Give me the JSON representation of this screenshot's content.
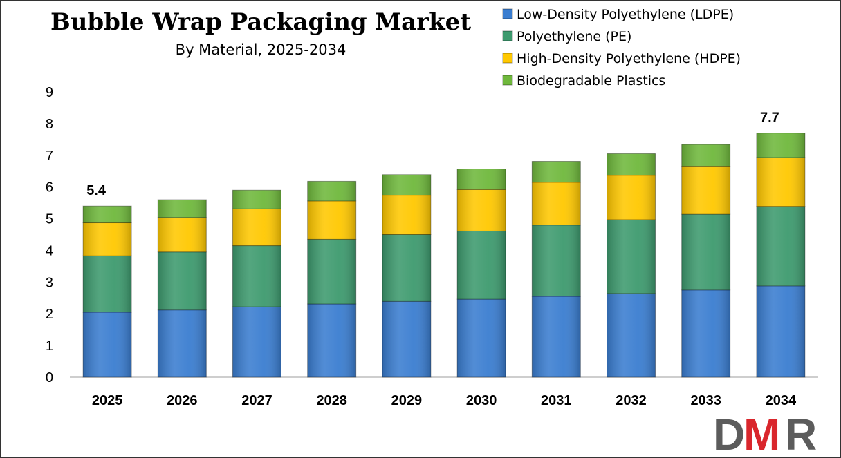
{
  "chart_data": {
    "type": "bar",
    "stacked": true,
    "title": "Bubble Wrap Packaging Market",
    "subtitle": "By Material, 2025-2034",
    "xlabel": "",
    "ylabel": "",
    "ylim": [
      0,
      9
    ],
    "yticks": [
      "0",
      "1",
      "2",
      "3",
      "4",
      "5",
      "6",
      "7",
      "8",
      "9"
    ],
    "grid": false,
    "legend_position": "top-right",
    "categories": [
      "2025",
      "2026",
      "2027",
      "2028",
      "2029",
      "2030",
      "2031",
      "2032",
      "2033",
      "2034"
    ],
    "series": [
      {
        "name": "Low-Density Polyethylene (LDPE)",
        "color": "#3a7dd0",
        "values": [
          2.05,
          2.12,
          2.22,
          2.31,
          2.39,
          2.46,
          2.55,
          2.64,
          2.75,
          2.88
        ]
      },
      {
        "name": "Polyethylene (PE)",
        "color": "#3d9a6e",
        "values": [
          1.78,
          1.83,
          1.93,
          2.04,
          2.11,
          2.15,
          2.25,
          2.33,
          2.39,
          2.51
        ]
      },
      {
        "name": "High-Density Polyethylene (HDPE)",
        "color": "#ffc800",
        "values": [
          1.04,
          1.09,
          1.16,
          1.21,
          1.24,
          1.31,
          1.35,
          1.4,
          1.5,
          1.54
        ]
      },
      {
        "name": "Biodegradable Plastics",
        "color": "#6fb83c",
        "values": [
          0.53,
          0.56,
          0.59,
          0.62,
          0.65,
          0.65,
          0.66,
          0.68,
          0.7,
          0.77
        ]
      }
    ],
    "data_labels": [
      {
        "category": "2025",
        "text": "5.4"
      },
      {
        "category": "2034",
        "text": "7.7"
      }
    ]
  },
  "logo": {
    "text_d": "D",
    "text_m": "M",
    "text_r": "R",
    "color_dark": "#5c5c5c",
    "color_red": "#d9262c"
  }
}
